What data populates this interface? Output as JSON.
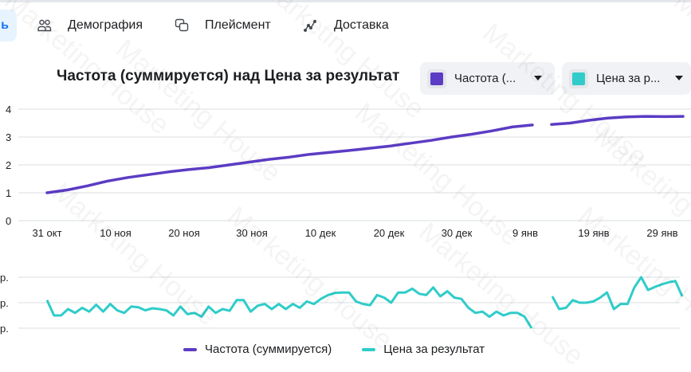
{
  "tabs": {
    "active_partial_label": "ь",
    "items": [
      {
        "label": "Демография",
        "icon": "people-icon"
      },
      {
        "label": "Плейсмент",
        "icon": "placement-icon"
      },
      {
        "label": "Доставка",
        "icon": "delivery-trend-icon"
      }
    ]
  },
  "chart_header": {
    "title": "Частота (суммируется) над Цена за результат",
    "metric_selectors": [
      {
        "label": "Частота (...",
        "color": "#5b3cc4"
      },
      {
        "label": "Цена за р...",
        "color": "#2fccc9"
      }
    ]
  },
  "legend": {
    "items": [
      {
        "label": "Частота (суммируется)",
        "color": "#5b3cc4"
      },
      {
        "label": "Цена за результат",
        "color": "#2fccc9"
      }
    ]
  },
  "watermark": "Marketing House",
  "chart_data": [
    {
      "type": "line",
      "title": "Частота (суммируется)",
      "xlabel": "",
      "ylabel": "",
      "ylim": [
        0,
        4
      ],
      "y_ticks": [
        "0",
        "1",
        "2",
        "3",
        "4"
      ],
      "x_ticks": [
        "31 окт",
        "10 ноя",
        "20 ноя",
        "30 ноя",
        "10 дек",
        "20 дек",
        "30 дек",
        "9 янв",
        "19 янв",
        "29 янв"
      ],
      "grid": true,
      "series": [
        {
          "name": "Частота (суммируется)",
          "color": "#5b3cc4",
          "segments": [
            {
              "x": [
                "31 окт",
                "3 ноя",
                "6 ноя",
                "9 ноя",
                "12 ноя",
                "15 ноя",
                "18 ноя",
                "21 ноя",
                "24 ноя",
                "27 ноя",
                "30 ноя",
                "3 дек",
                "6 дек",
                "9 дек",
                "12 дек",
                "15 дек",
                "18 дек",
                "21 дек",
                "24 дек",
                "27 дек",
                "30 дек",
                "2 янв",
                "5 янв",
                "8 янв",
                "10 янв"
              ],
              "values": [
                1.0,
                1.1,
                1.25,
                1.42,
                1.55,
                1.65,
                1.75,
                1.83,
                1.9,
                2.0,
                2.1,
                2.2,
                2.28,
                2.38,
                2.45,
                2.52,
                2.6,
                2.68,
                2.78,
                2.88,
                3.0,
                3.1,
                3.22,
                3.36,
                3.43
              ]
            },
            {
              "x": [
                "11 янв",
                "14 янв",
                "17 янв",
                "20 янв",
                "23 янв",
                "26 янв",
                "29 янв",
                "1 фев"
              ],
              "values": [
                3.45,
                3.5,
                3.6,
                3.68,
                3.72,
                3.74,
                3.73,
                3.74
              ]
            }
          ]
        }
      ]
    },
    {
      "type": "line",
      "title": "Цена за результат",
      "y_ticks": [
        "р.",
        "р.",
        "р."
      ],
      "grid": true,
      "series": [
        {
          "name": "Цена за результат",
          "color": "#2fccc9",
          "note": "relative values (y-axis labels truncated, only currency suffix visible); 0=lowest gridline, 1=middle, 2=top",
          "segments": [
            {
              "values": [
                1.1,
                0.5,
                0.5,
                0.75,
                0.6,
                0.8,
                0.65,
                0.92,
                0.65,
                0.95,
                0.7,
                0.6,
                0.85,
                0.82,
                0.7,
                0.78,
                0.75,
                0.7,
                0.5,
                0.85,
                0.55,
                0.6,
                0.45,
                0.85,
                0.6,
                0.75,
                0.68,
                1.1,
                1.1,
                0.65,
                0.88,
                0.95,
                0.75,
                0.95,
                0.75,
                0.95,
                0.8,
                1.05,
                0.95,
                1.15,
                1.3,
                1.38,
                1.4,
                1.4,
                1.05,
                0.95,
                0.9,
                1.3,
                1.2,
                1.0,
                1.4,
                1.4,
                1.55,
                1.35,
                1.3,
                1.6,
                1.25,
                1.45,
                1.2,
                1.15,
                0.8,
                0.6,
                0.65,
                0.45,
                0.65,
                0.5,
                0.6,
                0.6,
                0.45,
                0.0
              ]
            },
            {
              "values": [
                1.25,
                0.75,
                0.8,
                1.1,
                1.0,
                1.0,
                1.05,
                1.2,
                1.4,
                0.75,
                0.95,
                0.95,
                1.6,
                2.0,
                1.5,
                1.62,
                1.72,
                1.8,
                1.85,
                1.25
              ]
            }
          ]
        }
      ]
    }
  ]
}
